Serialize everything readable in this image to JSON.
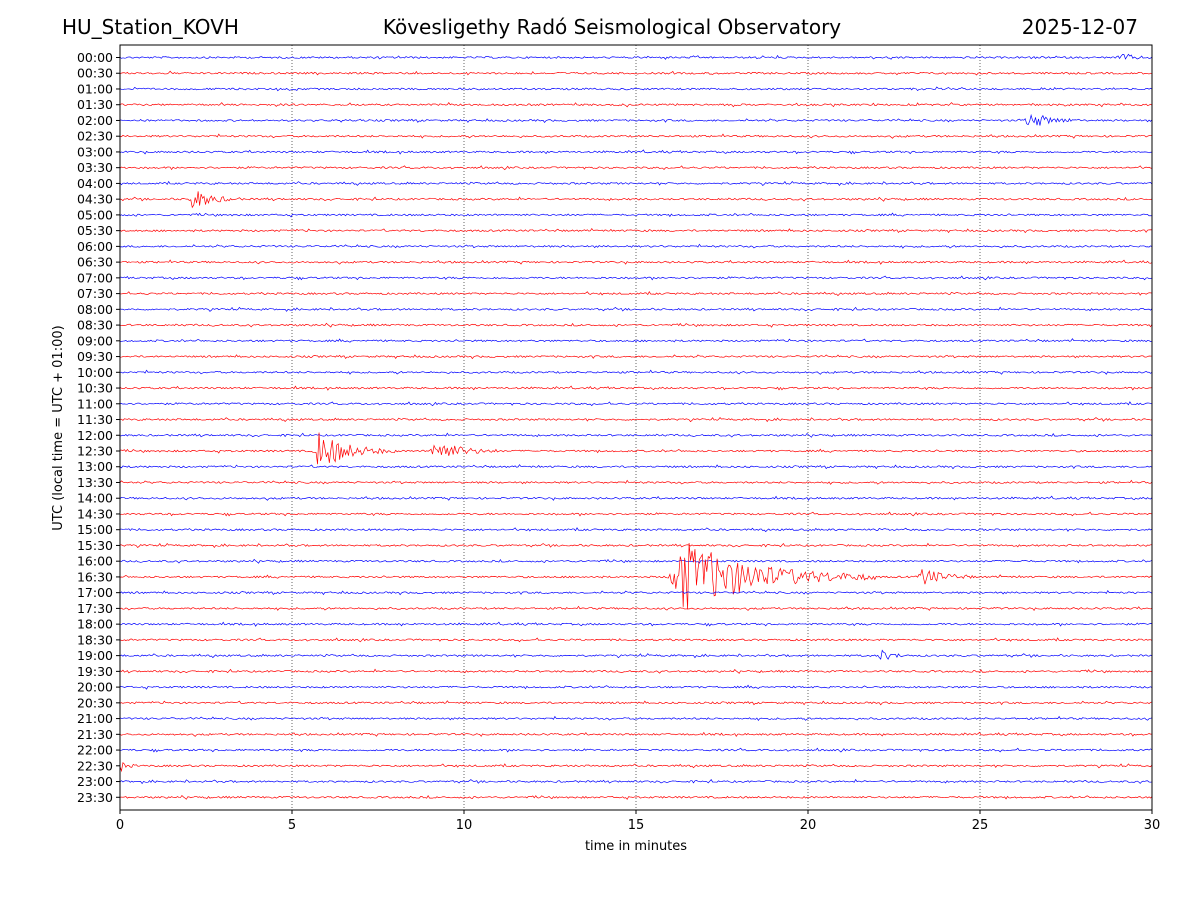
{
  "header": {
    "station": "HU_Station_KOVH",
    "title": "Kövesligethy Radó Seismological Observatory",
    "date": "2025-12-07"
  },
  "chart_data": {
    "type": "line",
    "subtype": "helicorder",
    "xlabel": "time in minutes",
    "ylabel": "UTC (local time = UTC + 01:00)",
    "xlim": [
      0,
      30
    ],
    "xticks": [
      "0",
      "5",
      "10",
      "15",
      "20",
      "25",
      "30"
    ],
    "grid": "vertical dotted lines at 5-minute intervals",
    "row_labels": [
      "00:00",
      "00:30",
      "01:00",
      "01:30",
      "02:00",
      "02:30",
      "03:00",
      "03:30",
      "04:00",
      "04:30",
      "05:00",
      "05:30",
      "06:00",
      "06:30",
      "07:00",
      "07:30",
      "08:00",
      "08:30",
      "09:00",
      "09:30",
      "10:00",
      "10:30",
      "11:00",
      "11:30",
      "12:00",
      "12:30",
      "13:00",
      "13:30",
      "14:00",
      "14:30",
      "15:00",
      "15:30",
      "16:00",
      "16:30",
      "17:00",
      "17:30",
      "18:00",
      "18:30",
      "19:00",
      "19:30",
      "20:00",
      "20:30",
      "21:00",
      "21:30",
      "22:00",
      "22:30",
      "23:00",
      "23:30"
    ],
    "colors": [
      "#0000ff",
      "#ff0000"
    ],
    "events": [
      {
        "row": "00:00",
        "start_min": 29.0,
        "end_min": 30.0,
        "amplitude": 0.4
      },
      {
        "row": "02:00",
        "start_min": 26.3,
        "end_min": 28.0,
        "amplitude": 0.7
      },
      {
        "row": "04:30",
        "start_min": 2.0,
        "end_min": 3.5,
        "amplitude": 0.9
      },
      {
        "row": "12:30",
        "start_min": 5.6,
        "end_min": 8.0,
        "amplitude": 1.6
      },
      {
        "row": "12:30",
        "start_min": 9.0,
        "end_min": 11.0,
        "amplitude": 1.0
      },
      {
        "row": "16:30",
        "start_min": 15.9,
        "end_min": 22.0,
        "amplitude": 3.0
      },
      {
        "row": "16:30",
        "start_min": 23.2,
        "end_min": 24.8,
        "amplitude": 0.8
      },
      {
        "row": "19:00",
        "start_min": 22.0,
        "end_min": 23.0,
        "amplitude": 0.5
      },
      {
        "row": "22:30",
        "start_min": 0.0,
        "end_min": 0.5,
        "amplitude": 0.4
      }
    ]
  }
}
